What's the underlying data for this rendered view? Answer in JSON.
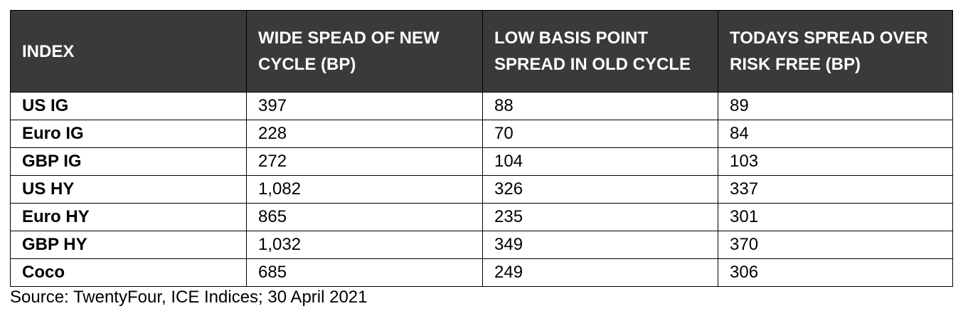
{
  "table": {
    "headers": [
      "INDEX",
      "WIDE SPEAD OF NEW CYCLE (BP)",
      "LOW BASIS POINT SPREAD IN OLD CYCLE",
      "TODAYS SPREAD OVER RISK FREE (BP)"
    ],
    "rows": [
      [
        "US IG",
        "397",
        "88",
        "89"
      ],
      [
        "Euro IG",
        "228",
        "70",
        "84"
      ],
      [
        "GBP IG",
        "272",
        "104",
        "103"
      ],
      [
        "US HY",
        "1,082",
        "326",
        "337"
      ],
      [
        "Euro HY",
        "865",
        "235",
        "301"
      ],
      [
        "GBP HY",
        "1,032",
        "349",
        "370"
      ],
      [
        "Coco",
        "685",
        "249",
        "306"
      ]
    ]
  },
  "source": "Source: TwentyFour, ICE Indices; 30 April 2021",
  "colors": {
    "header_bg": "#3a3a3a",
    "header_text": "#ffffff",
    "border": "#000000"
  }
}
